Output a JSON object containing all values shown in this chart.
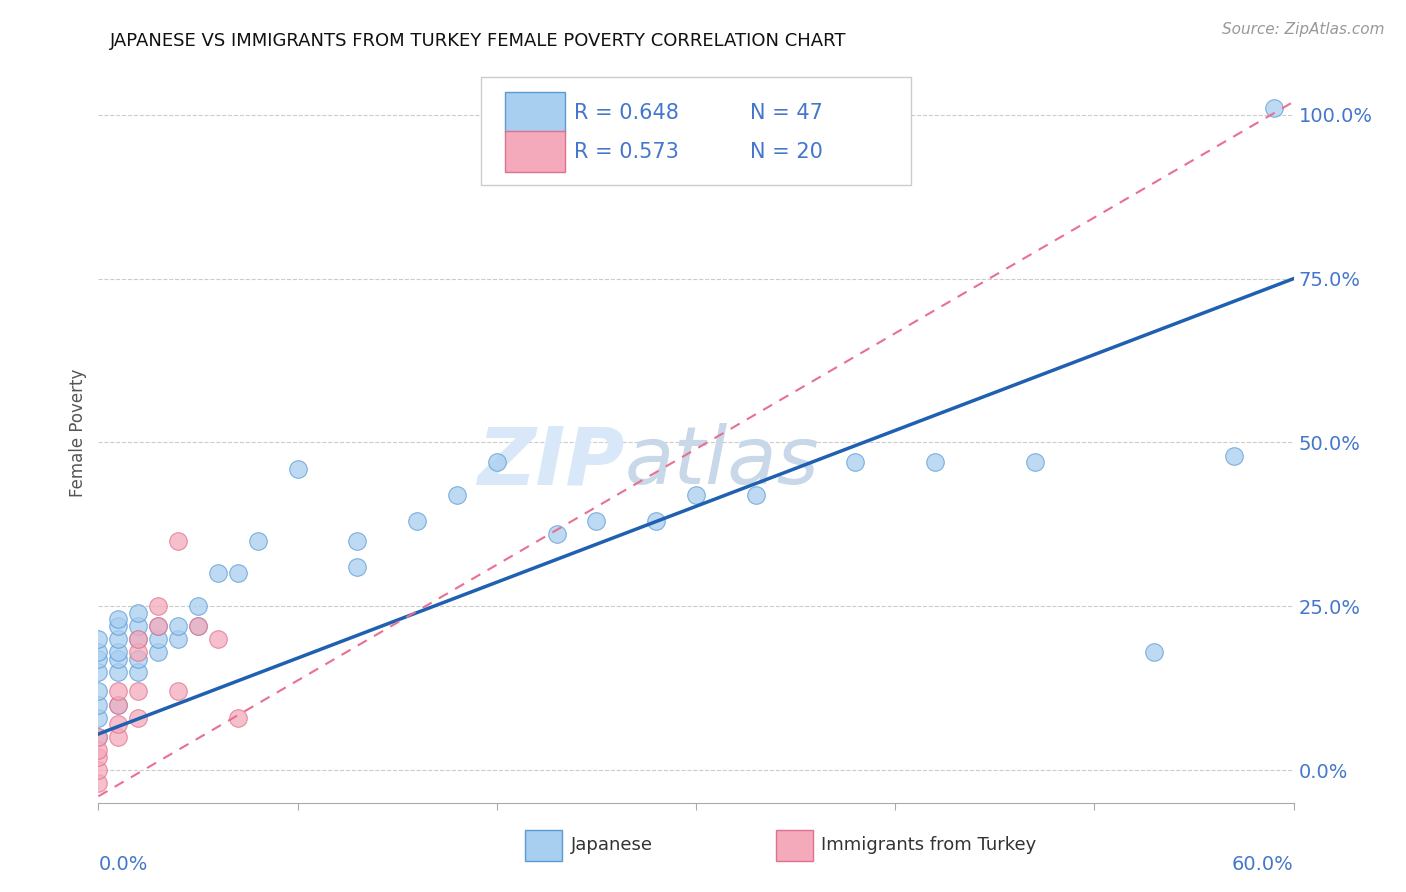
{
  "title": "JAPANESE VS IMMIGRANTS FROM TURKEY FEMALE POVERTY CORRELATION CHART",
  "source": "Source: ZipAtlas.com",
  "ylabel": "Female Poverty",
  "xlim": [
    0.0,
    0.6
  ],
  "ylim": [
    -0.05,
    1.08
  ],
  "ytick_labels": [
    "0.0%",
    "25.0%",
    "50.0%",
    "75.0%",
    "100.0%"
  ],
  "ytick_vals": [
    0.0,
    0.25,
    0.5,
    0.75,
    1.0
  ],
  "color_japanese": "#A8CEF0",
  "color_japanese_edge": "#5B9BD5",
  "color_turkey": "#F4AABB",
  "color_turkey_edge": "#E07090",
  "color_line_japanese": "#2060B0",
  "color_line_turkey": "#E87090",
  "color_grid": "#CCCCCC",
  "color_axis_label": "#4477CC",
  "color_source": "#999999",
  "watermark_color": "#D8E8F8",
  "japanese_x": [
    0.0,
    0.0,
    0.0,
    0.0,
    0.0,
    0.0,
    0.0,
    0.0,
    0.01,
    0.01,
    0.01,
    0.01,
    0.01,
    0.01,
    0.01,
    0.02,
    0.02,
    0.02,
    0.02,
    0.02,
    0.03,
    0.03,
    0.03,
    0.04,
    0.04,
    0.05,
    0.05,
    0.06,
    0.07,
    0.08,
    0.1,
    0.13,
    0.13,
    0.16,
    0.18,
    0.2,
    0.23,
    0.25,
    0.28,
    0.3,
    0.33,
    0.38,
    0.42,
    0.47,
    0.53,
    0.57,
    0.59
  ],
  "japanese_y": [
    0.05,
    0.08,
    0.1,
    0.12,
    0.15,
    0.17,
    0.18,
    0.2,
    0.1,
    0.15,
    0.17,
    0.18,
    0.2,
    0.22,
    0.23,
    0.15,
    0.17,
    0.2,
    0.22,
    0.24,
    0.18,
    0.2,
    0.22,
    0.2,
    0.22,
    0.22,
    0.25,
    0.3,
    0.3,
    0.35,
    0.46,
    0.31,
    0.35,
    0.38,
    0.42,
    0.47,
    0.36,
    0.38,
    0.38,
    0.42,
    0.42,
    0.47,
    0.47,
    0.47,
    0.18,
    0.48,
    1.01
  ],
  "turkey_x": [
    0.0,
    0.0,
    0.0,
    0.0,
    0.0,
    0.01,
    0.01,
    0.01,
    0.01,
    0.02,
    0.02,
    0.02,
    0.02,
    0.03,
    0.03,
    0.04,
    0.04,
    0.05,
    0.06,
    0.07
  ],
  "turkey_y": [
    -0.02,
    0.0,
    0.02,
    0.03,
    0.05,
    0.05,
    0.07,
    0.1,
    0.12,
    0.08,
    0.12,
    0.18,
    0.2,
    0.22,
    0.25,
    0.12,
    0.35,
    0.22,
    0.2,
    0.08
  ],
  "jp_line_x0": 0.0,
  "jp_line_y0": 0.055,
  "jp_line_x1": 0.6,
  "jp_line_y1": 0.75,
  "tk_line_x0": 0.0,
  "tk_line_y0": -0.04,
  "tk_line_x1": 0.6,
  "tk_line_y1": 1.02
}
